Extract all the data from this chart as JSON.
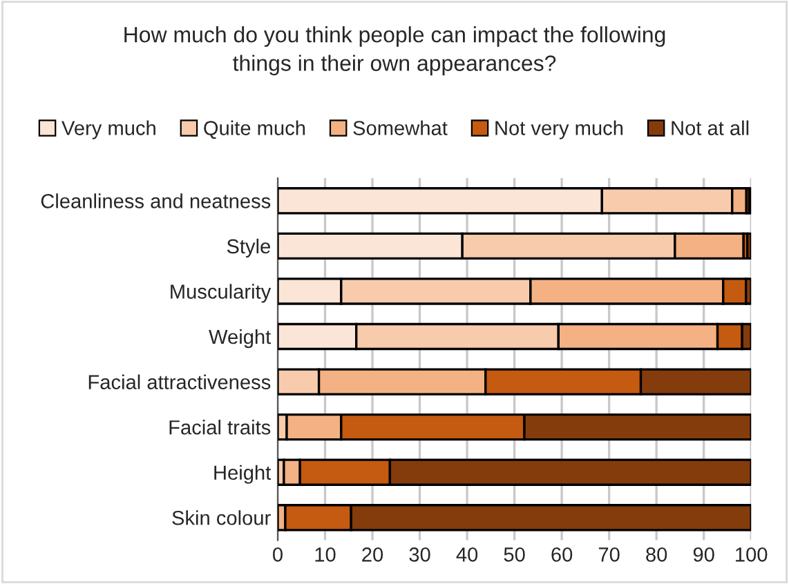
{
  "chart_data": {
    "type": "bar",
    "orientation": "horizontal",
    "stacked": true,
    "title": "How much do you think people can impact the following\nthings in their own appearances?",
    "categories": [
      "Cleanliness and neatness",
      "Style",
      "Muscularity",
      "Weight",
      "Facial attractiveness",
      "Facial traits",
      "Height",
      "Skin colour"
    ],
    "series": [
      {
        "name": "Very much",
        "color": "#fbe5d6",
        "values": [
          68.5,
          39,
          13.4,
          16.6,
          null,
          null,
          null,
          null
        ]
      },
      {
        "name": "Quite much",
        "color": "#f8cbad",
        "values": [
          27.5,
          44.9,
          40,
          42.7,
          8.7,
          1.9,
          1.3,
          null
        ]
      },
      {
        "name": "Somewhat",
        "color": "#f4b183",
        "values": [
          3,
          14.5,
          40.7,
          33.6,
          35.2,
          11.5,
          3.4,
          1.6
        ]
      },
      {
        "name": "Not very much",
        "color": "#c55a11",
        "values": [
          0.6,
          0.8,
          4.8,
          5.2,
          32.8,
          38.7,
          19,
          13.9
        ]
      },
      {
        "name": "Not at all",
        "color": "#843c0c",
        "values": [
          0.4,
          0.8,
          1.1,
          1.9,
          23.3,
          47.9,
          76.3,
          84.5
        ]
      }
    ],
    "xlim": [
      0,
      100
    ],
    "xticks": [
      0,
      10,
      20,
      30,
      40,
      50,
      60,
      70,
      80,
      90,
      100
    ],
    "grid": "x",
    "legend": "top"
  }
}
